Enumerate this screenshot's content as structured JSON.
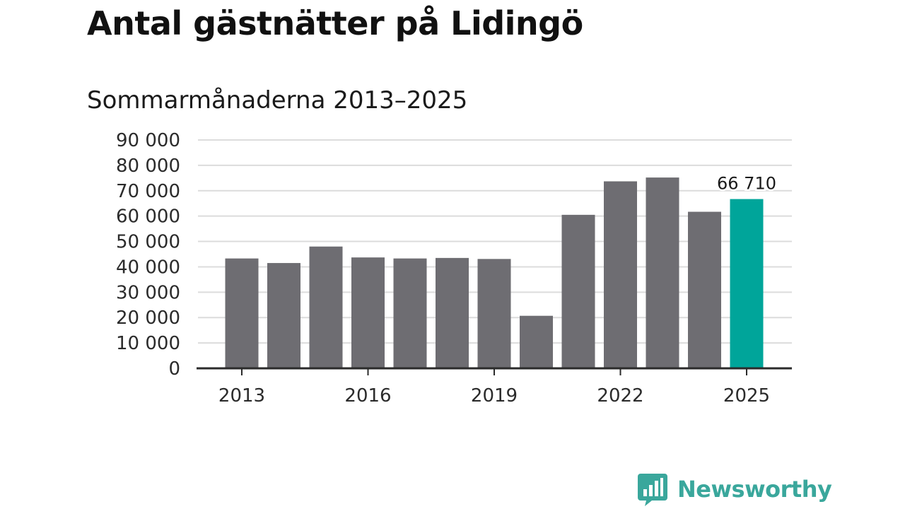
{
  "chart_data": {
    "type": "bar",
    "title": "Antal gästnätter på Lidingö",
    "subtitle": "Sommarmånaderna 2013–2025",
    "categories": [
      "2013",
      "2014",
      "2015",
      "2016",
      "2017",
      "2018",
      "2019",
      "2020",
      "2021",
      "2022",
      "2023",
      "2024",
      "2025"
    ],
    "values": [
      43300,
      41500,
      48000,
      43700,
      43300,
      43500,
      43100,
      20700,
      60500,
      73700,
      75200,
      61700,
      66710
    ],
    "ylim": [
      0,
      90000
    ],
    "y_ticks": [
      {
        "value": 0,
        "label": "0"
      },
      {
        "value": 10000,
        "label": "10 000"
      },
      {
        "value": 20000,
        "label": "20 000"
      },
      {
        "value": 30000,
        "label": "30 000"
      },
      {
        "value": 40000,
        "label": "40 000"
      },
      {
        "value": 50000,
        "label": "50 000"
      },
      {
        "value": 60000,
        "label": "60 000"
      },
      {
        "value": 70000,
        "label": "70 000"
      },
      {
        "value": 80000,
        "label": "80 000"
      },
      {
        "value": 90000,
        "label": "90 000"
      }
    ],
    "x_ticks": [
      "2013",
      "2016",
      "2019",
      "2022",
      "2025"
    ],
    "highlight": {
      "category": "2025",
      "label": "66 710"
    },
    "grid": true,
    "colors": {
      "bar": "#6e6d72",
      "highlight": "#00a59a",
      "grid": "#dcdcdc",
      "axis": "#2b2b2b"
    }
  },
  "brand": {
    "name": "Newsworthy",
    "color": "#3aa79c"
  },
  "icons": {
    "brand_logo": "bar-chart-speech-bubble-icon"
  }
}
